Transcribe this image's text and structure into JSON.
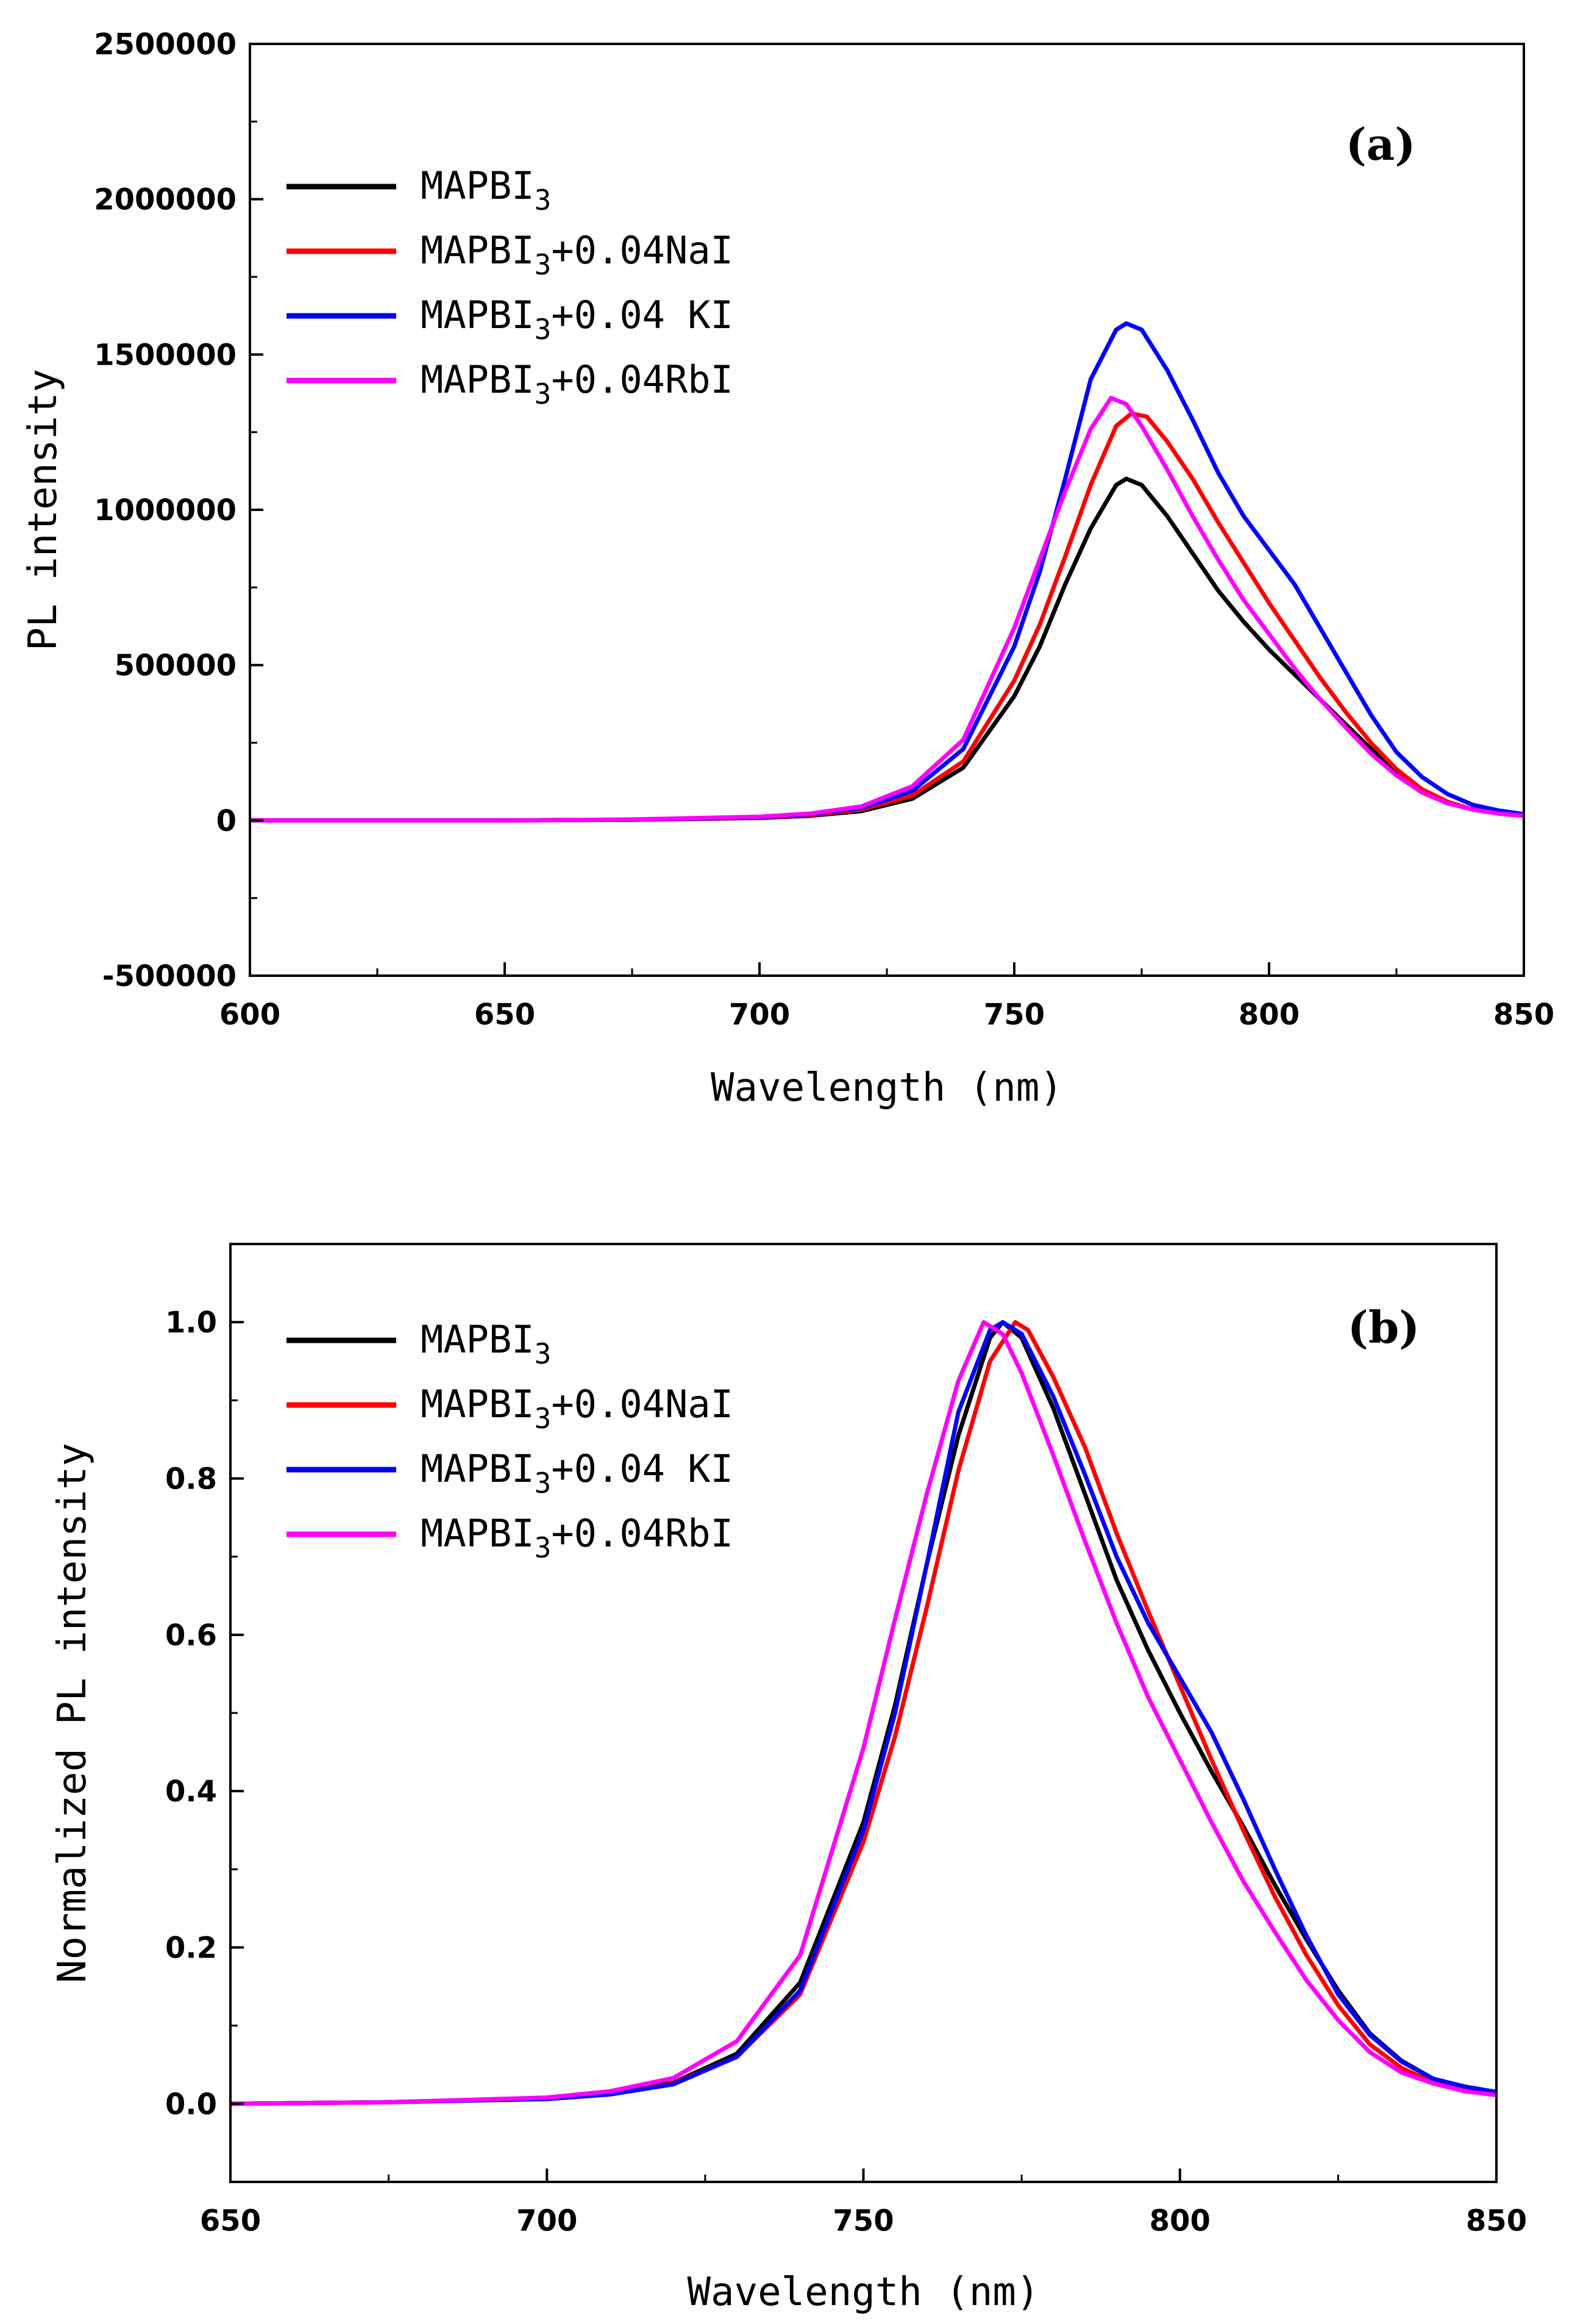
{
  "chart_data": [
    {
      "type": "line",
      "panel_label": "(a)",
      "xlabel": "Wavelength (nm)",
      "ylabel": "PL intensity",
      "xlim": [
        600,
        850
      ],
      "ylim": [
        -500000,
        2500000
      ],
      "x_ticks": [
        "600",
        "650",
        "700",
        "750",
        "800",
        "850"
      ],
      "y_ticks": [
        "-500000",
        "0",
        "500000",
        "1000000",
        "1500000",
        "2000000",
        "2500000"
      ],
      "legend_position": "top-left",
      "grid": false,
      "series": [
        {
          "name": "MAPBI3",
          "base": "MAPBI",
          "sub": "3",
          "suffix": "",
          "color": "#000000",
          "points": [
            [
              600,
              0
            ],
            [
              650,
              0
            ],
            [
              675,
              2000
            ],
            [
              700,
              8000
            ],
            [
              710,
              15000
            ],
            [
              720,
              30000
            ],
            [
              730,
              70000
            ],
            [
              740,
              170000
            ],
            [
              750,
              400000
            ],
            [
              755,
              560000
            ],
            [
              760,
              760000
            ],
            [
              765,
              940000
            ],
            [
              770,
              1080000
            ],
            [
              772,
              1100000
            ],
            [
              775,
              1080000
            ],
            [
              780,
              980000
            ],
            [
              785,
              860000
            ],
            [
              790,
              740000
            ],
            [
              795,
              640000
            ],
            [
              800,
              550000
            ],
            [
              805,
              470000
            ],
            [
              810,
              390000
            ],
            [
              815,
              310000
            ],
            [
              820,
              230000
            ],
            [
              825,
              160000
            ],
            [
              830,
              100000
            ],
            [
              835,
              60000
            ],
            [
              840,
              35000
            ],
            [
              845,
              22000
            ],
            [
              850,
              15000
            ]
          ]
        },
        {
          "name": "MAPBI3+0.04NaI",
          "base": "MAPBI",
          "sub": "3",
          "suffix": "+0.04NaI",
          "color": "#ff0000",
          "points": [
            [
              600,
              0
            ],
            [
              650,
              0
            ],
            [
              675,
              2000
            ],
            [
              700,
              9000
            ],
            [
              710,
              17000
            ],
            [
              720,
              35000
            ],
            [
              730,
              80000
            ],
            [
              740,
              190000
            ],
            [
              750,
              450000
            ],
            [
              755,
              630000
            ],
            [
              760,
              850000
            ],
            [
              765,
              1080000
            ],
            [
              770,
              1270000
            ],
            [
              773,
              1310000
            ],
            [
              776,
              1300000
            ],
            [
              780,
              1220000
            ],
            [
              785,
              1100000
            ],
            [
              790,
              960000
            ],
            [
              795,
              830000
            ],
            [
              800,
              700000
            ],
            [
              805,
              580000
            ],
            [
              810,
              460000
            ],
            [
              815,
              350000
            ],
            [
              820,
              250000
            ],
            [
              825,
              165000
            ],
            [
              830,
              100000
            ],
            [
              835,
              60000
            ],
            [
              840,
              35000
            ],
            [
              845,
              22000
            ],
            [
              850,
              15000
            ]
          ]
        },
        {
          "name": "MAPBI3+0.04 KI",
          "base": "MAPBI",
          "sub": "3",
          "suffix": "+0.04 KI",
          "color": "#0000ff",
          "points": [
            [
              600,
              0
            ],
            [
              650,
              0
            ],
            [
              675,
              2000
            ],
            [
              700,
              10000
            ],
            [
              710,
              20000
            ],
            [
              720,
              40000
            ],
            [
              730,
              95000
            ],
            [
              740,
              230000
            ],
            [
              750,
              560000
            ],
            [
              755,
              800000
            ],
            [
              760,
              1100000
            ],
            [
              765,
              1420000
            ],
            [
              770,
              1580000
            ],
            [
              772,
              1600000
            ],
            [
              775,
              1580000
            ],
            [
              780,
              1450000
            ],
            [
              785,
              1290000
            ],
            [
              790,
              1120000
            ],
            [
              795,
              980000
            ],
            [
              800,
              870000
            ],
            [
              805,
              760000
            ],
            [
              810,
              620000
            ],
            [
              815,
              480000
            ],
            [
              820,
              340000
            ],
            [
              825,
              220000
            ],
            [
              830,
              140000
            ],
            [
              835,
              85000
            ],
            [
              840,
              50000
            ],
            [
              845,
              32000
            ],
            [
              850,
              20000
            ]
          ]
        },
        {
          "name": "MAPBI3+0.04RbI",
          "base": "MAPBI",
          "sub": "3",
          "suffix": "+0.04RbI",
          "color": "#ff00ff",
          "points": [
            [
              600,
              0
            ],
            [
              650,
              0
            ],
            [
              675,
              3000
            ],
            [
              700,
              12000
            ],
            [
              710,
              22000
            ],
            [
              720,
              45000
            ],
            [
              730,
              110000
            ],
            [
              740,
              260000
            ],
            [
              750,
              620000
            ],
            [
              755,
              840000
            ],
            [
              760,
              1060000
            ],
            [
              765,
              1260000
            ],
            [
              769,
              1360000
            ],
            [
              772,
              1340000
            ],
            [
              775,
              1270000
            ],
            [
              780,
              1130000
            ],
            [
              785,
              980000
            ],
            [
              790,
              840000
            ],
            [
              795,
              710000
            ],
            [
              800,
              600000
            ],
            [
              805,
              490000
            ],
            [
              810,
              390000
            ],
            [
              815,
              300000
            ],
            [
              820,
              215000
            ],
            [
              825,
              145000
            ],
            [
              830,
              90000
            ],
            [
              835,
              55000
            ],
            [
              840,
              35000
            ],
            [
              845,
              22000
            ],
            [
              850,
              15000
            ]
          ]
        }
      ]
    },
    {
      "type": "line",
      "panel_label": "(b)",
      "xlabel": "Wavelength (nm)",
      "ylabel": "Normalized PL intensity",
      "xlim": [
        650,
        850
      ],
      "ylim": [
        -0.1,
        1.1
      ],
      "x_ticks": [
        "650",
        "700",
        "750",
        "800",
        "850"
      ],
      "y_ticks": [
        "0.0",
        "0.2",
        "0.4",
        "0.6",
        "0.8",
        "1.0"
      ],
      "legend_position": "top-left",
      "grid": false,
      "series": [
        {
          "name": "MAPBI3",
          "base": "MAPBI",
          "sub": "3",
          "suffix": "",
          "color": "#000000",
          "points": [
            [
              650,
              0
            ],
            [
              675,
              0.002
            ],
            [
              700,
              0.007
            ],
            [
              710,
              0.014
            ],
            [
              720,
              0.027
            ],
            [
              730,
              0.064
            ],
            [
              740,
              0.155
            ],
            [
              750,
              0.36
            ],
            [
              755,
              0.51
            ],
            [
              760,
              0.69
            ],
            [
              765,
              0.855
            ],
            [
              770,
              0.98
            ],
            [
              772,
              1.0
            ],
            [
              775,
              0.98
            ],
            [
              780,
              0.89
            ],
            [
              785,
              0.78
            ],
            [
              790,
              0.67
            ],
            [
              795,
              0.58
            ],
            [
              800,
              0.5
            ],
            [
              805,
              0.425
            ],
            [
              810,
              0.355
            ],
            [
              815,
              0.28
            ],
            [
              820,
              0.21
            ],
            [
              825,
              0.145
            ],
            [
              830,
              0.09
            ],
            [
              835,
              0.055
            ],
            [
              840,
              0.032
            ],
            [
              845,
              0.02
            ],
            [
              850,
              0.014
            ]
          ]
        },
        {
          "name": "MAPBI3+0.04NaI",
          "base": "MAPBI",
          "sub": "3",
          "suffix": "+0.04NaI",
          "color": "#ff0000",
          "points": [
            [
              650,
              0
            ],
            [
              675,
              0.002
            ],
            [
              700,
              0.007
            ],
            [
              710,
              0.013
            ],
            [
              720,
              0.026
            ],
            [
              730,
              0.06
            ],
            [
              740,
              0.14
            ],
            [
              750,
              0.335
            ],
            [
              755,
              0.47
            ],
            [
              760,
              0.635
            ],
            [
              765,
              0.81
            ],
            [
              770,
              0.95
            ],
            [
              774,
              1.0
            ],
            [
              776,
              0.99
            ],
            [
              780,
              0.93
            ],
            [
              785,
              0.84
            ],
            [
              790,
              0.73
            ],
            [
              795,
              0.63
            ],
            [
              800,
              0.535
            ],
            [
              805,
              0.44
            ],
            [
              810,
              0.35
            ],
            [
              815,
              0.265
            ],
            [
              820,
              0.19
            ],
            [
              825,
              0.126
            ],
            [
              830,
              0.076
            ],
            [
              835,
              0.046
            ],
            [
              840,
              0.027
            ],
            [
              845,
              0.017
            ],
            [
              850,
              0.012
            ]
          ]
        },
        {
          "name": "MAPBI3+0.04 KI",
          "base": "MAPBI",
          "sub": "3",
          "suffix": "+0.04 KI",
          "color": "#0000ff",
          "points": [
            [
              650,
              0
            ],
            [
              675,
              0.002
            ],
            [
              700,
              0.006
            ],
            [
              710,
              0.012
            ],
            [
              720,
              0.025
            ],
            [
              730,
              0.06
            ],
            [
              740,
              0.145
            ],
            [
              750,
              0.35
            ],
            [
              755,
              0.5
            ],
            [
              760,
              0.69
            ],
            [
              765,
              0.885
            ],
            [
              770,
              0.99
            ],
            [
              772,
              1.0
            ],
            [
              775,
              0.985
            ],
            [
              780,
              0.905
            ],
            [
              785,
              0.805
            ],
            [
              790,
              0.7
            ],
            [
              795,
              0.615
            ],
            [
              800,
              0.545
            ],
            [
              805,
              0.475
            ],
            [
              810,
              0.39
            ],
            [
              815,
              0.3
            ],
            [
              820,
              0.215
            ],
            [
              825,
              0.14
            ],
            [
              830,
              0.088
            ],
            [
              835,
              0.054
            ],
            [
              840,
              0.032
            ],
            [
              845,
              0.022
            ],
            [
              850,
              0.015
            ]
          ]
        },
        {
          "name": "MAPBI3+0.04RbI",
          "base": "MAPBI",
          "sub": "3",
          "suffix": "+0.04RbI",
          "color": "#ff00ff",
          "points": [
            [
              650,
              0
            ],
            [
              675,
              0.002
            ],
            [
              700,
              0.008
            ],
            [
              710,
              0.016
            ],
            [
              720,
              0.033
            ],
            [
              730,
              0.08
            ],
            [
              740,
              0.19
            ],
            [
              750,
              0.455
            ],
            [
              755,
              0.62
            ],
            [
              760,
              0.78
            ],
            [
              765,
              0.925
            ],
            [
              769,
              1.0
            ],
            [
              772,
              0.985
            ],
            [
              775,
              0.935
            ],
            [
              780,
              0.83
            ],
            [
              785,
              0.72
            ],
            [
              790,
              0.615
            ],
            [
              795,
              0.52
            ],
            [
              800,
              0.44
            ],
            [
              805,
              0.36
            ],
            [
              810,
              0.285
            ],
            [
              815,
              0.22
            ],
            [
              820,
              0.158
            ],
            [
              825,
              0.107
            ],
            [
              830,
              0.066
            ],
            [
              835,
              0.04
            ],
            [
              840,
              0.026
            ],
            [
              845,
              0.016
            ],
            [
              850,
              0.011
            ]
          ]
        }
      ]
    }
  ]
}
